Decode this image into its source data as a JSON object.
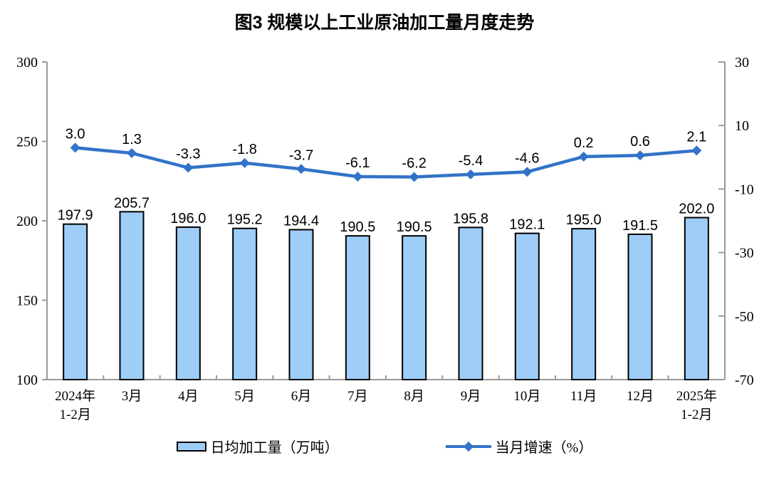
{
  "title": "图3 规模以上工业原油加工量月度走势",
  "colors": {
    "bar_fill": "#9ECDF8",
    "bar_border": "#000000",
    "line": "#3273C8",
    "axis": "#999999",
    "text": "#000000"
  },
  "chart_data": {
    "type": "bar+line",
    "title": "图3 规模以上工业原油加工量月度走势",
    "categories": [
      [
        "2024年",
        "1-2月"
      ],
      [
        "3月"
      ],
      [
        "4月"
      ],
      [
        "5月"
      ],
      [
        "6月"
      ],
      [
        "7月"
      ],
      [
        "8月"
      ],
      [
        "9月"
      ],
      [
        "10月"
      ],
      [
        "11月"
      ],
      [
        "12月"
      ],
      [
        "2025年",
        "1-2月"
      ]
    ],
    "series": [
      {
        "name": "日均加工量（万吨）",
        "type": "bar",
        "axis": "left",
        "values": [
          197.9,
          205.7,
          196.0,
          195.2,
          194.4,
          190.5,
          190.5,
          195.8,
          192.1,
          195.0,
          191.5,
          202.0
        ],
        "labels": [
          "197.9",
          "205.7",
          "196.0",
          "195.2",
          "194.4",
          "190.5",
          "190.5",
          "195.8",
          "192.1",
          "195.0",
          "191.5",
          "202.0"
        ]
      },
      {
        "name": "当月增速（%）",
        "type": "line",
        "axis": "right",
        "values": [
          3.0,
          1.3,
          -3.3,
          -1.8,
          -3.7,
          -6.1,
          -6.2,
          -5.4,
          -4.6,
          0.2,
          0.6,
          2.1
        ],
        "labels": [
          "3.0",
          "1.3",
          "-3.3",
          "-1.8",
          "-3.7",
          "-6.1",
          "-6.2",
          "-5.4",
          "-4.6",
          "0.2",
          "0.6",
          "2.1"
        ]
      }
    ],
    "left_axis": {
      "min": 100,
      "max": 300,
      "ticks": [
        300,
        250,
        200,
        150,
        100
      ]
    },
    "right_axis": {
      "min": -70,
      "max": 30,
      "ticks": [
        30,
        10,
        -10,
        -30,
        -50,
        -70
      ]
    },
    "grid": false,
    "legend_position": "bottom"
  }
}
